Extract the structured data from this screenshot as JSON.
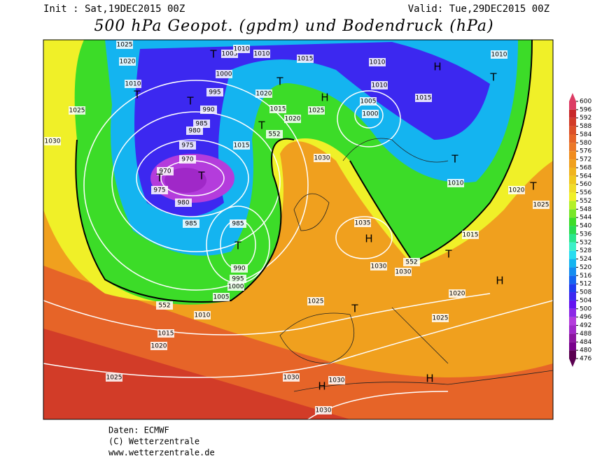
{
  "header": {
    "init": "Init : Sat,19DEC2015 00Z",
    "valid": "Valid: Tue,29DEC2015 00Z",
    "title": "500 hPa Geopot. (gpdm) und Bodendruck (hPa)"
  },
  "footer": [
    "Daten: ECMWF",
    "(C) Wetterzentrale",
    "www.wetterzentrale.de"
  ],
  "colorbar": {
    "ticks": [
      476,
      480,
      484,
      488,
      492,
      496,
      500,
      504,
      508,
      512,
      516,
      520,
      524,
      528,
      532,
      536,
      540,
      544,
      548,
      552,
      556,
      560,
      564,
      568,
      572,
      576,
      580,
      584,
      588,
      592,
      596,
      600
    ],
    "colors": [
      "#5a0050",
      "#78008c",
      "#8c14a0",
      "#a028c8",
      "#b43cdc",
      "#8c28e6",
      "#6414f0",
      "#3c28f0",
      "#1e3cf0",
      "#1464f0",
      "#148cf0",
      "#14b4f0",
      "#28dcf0",
      "#3cf0c8",
      "#28e68c",
      "#28dc50",
      "#3cdc28",
      "#78e628",
      "#b4f028",
      "#f0f028",
      "#f0dc28",
      "#f0c81e",
      "#f0b41e",
      "#f0a01e",
      "#f08c1e",
      "#eb7828",
      "#e66428",
      "#dc5028",
      "#d23c28",
      "#c82828",
      "#dc3c64"
    ]
  },
  "map_labels": [
    "1025",
    "1020",
    "1010",
    "1025",
    "1030",
    "1005",
    "1010",
    "1010",
    "1000",
    "995",
    "990",
    "985",
    "980",
    "975",
    "970",
    "970",
    "975",
    "980",
    "985",
    "985",
    "990",
    "995",
    "1000",
    "1005",
    "1010",
    "1015",
    "1020",
    "1025",
    "1015",
    "1010",
    "1020",
    "1015",
    "1020",
    "1025",
    "1015",
    "1030",
    "1005",
    "1000",
    "1010",
    "1015",
    "1010",
    "1010",
    "1020",
    "1025",
    "1035",
    "1030",
    "1030",
    "1025",
    "1025",
    "1020",
    "1015",
    "1030",
    "1030",
    "1030",
    "552",
    "552",
    "552"
  ],
  "map_symbols": [
    "T",
    "T",
    "T",
    "T",
    "T",
    "H",
    "T",
    "T",
    "T",
    "H",
    "T",
    "T",
    "H",
    "T",
    "T",
    "T",
    "H",
    "H",
    "H"
  ]
}
